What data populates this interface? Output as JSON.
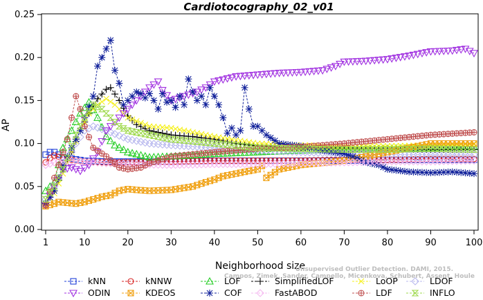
{
  "chart_data": {
    "type": "line",
    "title": "Cardiotocography_02_v01",
    "xlabel": "Neighborhood size",
    "ylabel": "AP",
    "xlim": [
      1,
      100
    ],
    "ylim": [
      0,
      0.25
    ],
    "xticks": [
      1,
      10,
      20,
      30,
      40,
      50,
      60,
      70,
      80,
      90,
      100
    ],
    "yticks": [
      0.0,
      0.05,
      0.1,
      0.15,
      0.2,
      0.25
    ],
    "ytick_labels": [
      "0.00",
      "0.05",
      "0.10",
      "0.15",
      "0.20",
      "0.25"
    ],
    "grid": false,
    "legend_position": "bottom",
    "credit_lines": [
      "Unsupervised Outlier Detection. DAMI, 2015.",
      "Campos, Zimek, Sander, Campello, Micenkova, Schubert, Assent, Houle"
    ],
    "series": [
      {
        "name": "kNN",
        "color": "#1f3fd8",
        "marker": "square",
        "x": [
          1,
          2,
          3,
          5,
          10,
          15,
          20,
          30,
          40,
          50,
          60,
          70,
          80,
          90,
          100
        ],
        "y": [
          0.087,
          0.09,
          0.09,
          0.084,
          0.08,
          0.079,
          0.079,
          0.079,
          0.08,
          0.08,
          0.08,
          0.08,
          0.081,
          0.081,
          0.081
        ]
      },
      {
        "name": "kNNW",
        "color": "#d62020",
        "marker": "circle",
        "x": [
          1,
          2,
          3,
          5,
          8,
          10,
          15,
          20,
          30,
          40,
          50,
          60,
          70,
          80,
          90,
          100
        ],
        "y": [
          0.078,
          0.083,
          0.086,
          0.083,
          0.08,
          0.079,
          0.078,
          0.078,
          0.079,
          0.08,
          0.08,
          0.08,
          0.081,
          0.081,
          0.082,
          0.082
        ]
      },
      {
        "name": "LOF",
        "color": "#22cc22",
        "marker": "triangle-up",
        "x": [
          1,
          3,
          5,
          7,
          9,
          11,
          13,
          15,
          17,
          20,
          25,
          30,
          40,
          50,
          60,
          70,
          80,
          90,
          100
        ],
        "y": [
          0.045,
          0.055,
          0.095,
          0.115,
          0.135,
          0.148,
          0.13,
          0.108,
          0.098,
          0.09,
          0.084,
          0.085,
          0.088,
          0.09,
          0.092,
          0.093,
          0.094,
          0.095,
          0.096
        ]
      },
      {
        "name": "SimplifiedLOF",
        "color": "#000000",
        "marker": "plus",
        "x": [
          1,
          3,
          5,
          7,
          9,
          11,
          13,
          15,
          16,
          18,
          20,
          22,
          25,
          30,
          35,
          40,
          45,
          50,
          60,
          70,
          80,
          90,
          100
        ],
        "y": [
          0.03,
          0.045,
          0.07,
          0.09,
          0.115,
          0.135,
          0.152,
          0.163,
          0.165,
          0.15,
          0.132,
          0.122,
          0.115,
          0.11,
          0.108,
          0.105,
          0.1,
          0.097,
          0.095,
          0.094,
          0.094,
          0.093,
          0.093
        ]
      },
      {
        "name": "LoOP",
        "color": "#f5f01a",
        "marker": "x",
        "x": [
          1,
          3,
          5,
          7,
          9,
          11,
          13,
          15,
          17,
          20,
          25,
          30,
          40,
          50,
          60,
          70,
          80,
          90,
          100
        ],
        "y": [
          0.03,
          0.042,
          0.065,
          0.09,
          0.115,
          0.135,
          0.145,
          0.152,
          0.145,
          0.13,
          0.12,
          0.118,
          0.108,
          0.1,
          0.098,
          0.097,
          0.097,
          0.098,
          0.099
        ]
      },
      {
        "name": "LDOF",
        "color": "#b8b8ee",
        "marker": "diamond",
        "x": [
          1,
          3,
          5,
          8,
          10,
          12,
          15,
          20,
          25,
          30,
          40,
          50,
          60,
          70,
          80,
          90,
          100
        ],
        "y": [
          0.035,
          0.05,
          0.07,
          0.1,
          0.115,
          0.12,
          0.115,
          0.105,
          0.1,
          0.098,
          0.095,
          0.092,
          0.09,
          0.088,
          0.087,
          0.087,
          0.087
        ]
      },
      {
        "name": "ODIN",
        "color": "#a030e0",
        "marker": "triangle-down",
        "x": [
          1,
          3,
          5,
          7,
          9,
          11,
          13,
          15,
          18,
          20,
          23,
          25,
          27,
          28,
          30,
          33,
          36,
          38,
          40,
          45,
          50,
          55,
          60,
          65,
          68,
          70,
          75,
          80,
          85,
          88,
          90,
          95,
          98,
          100
        ],
        "y": [
          0.028,
          0.05,
          0.07,
          0.072,
          0.068,
          0.075,
          0.09,
          0.115,
          0.13,
          0.14,
          0.155,
          0.165,
          0.172,
          0.162,
          0.15,
          0.155,
          0.16,
          0.165,
          0.172,
          0.178,
          0.18,
          0.182,
          0.183,
          0.185,
          0.19,
          0.195,
          0.196,
          0.198,
          0.202,
          0.205,
          0.207,
          0.208,
          0.21,
          0.205
        ]
      },
      {
        "name": "KDEOS",
        "color": "#f0a010",
        "marker": "square-x",
        "x": [
          1,
          3,
          4,
          6,
          8,
          10,
          12,
          14,
          16,
          18,
          20,
          22,
          25,
          30,
          35,
          38,
          40,
          42,
          45,
          48,
          50,
          51,
          52,
          55,
          60,
          70,
          80,
          90,
          100
        ],
        "y": [
          0.027,
          0.03,
          0.032,
          0.031,
          0.03,
          0.032,
          0.035,
          0.038,
          0.04,
          0.045,
          0.047,
          0.046,
          0.045,
          0.046,
          0.05,
          0.055,
          0.058,
          0.062,
          0.065,
          0.068,
          0.07,
          0.074,
          0.06,
          0.07,
          0.075,
          0.08,
          0.09,
          0.1,
          0.1
        ]
      },
      {
        "name": "COF",
        "color": "#10209a",
        "marker": "star",
        "x": [
          1,
          3,
          5,
          7,
          9,
          10,
          12,
          13,
          14,
          15,
          16,
          17,
          18,
          19,
          20,
          21,
          22,
          23,
          24,
          25,
          26,
          27,
          28,
          29,
          30,
          31,
          32,
          33,
          34,
          35,
          36,
          37,
          38,
          39,
          40,
          41,
          42,
          43,
          44,
          45,
          46,
          47,
          48,
          49,
          50,
          52,
          55,
          60,
          65,
          70,
          72,
          75,
          78,
          80,
          85,
          90,
          95,
          100
        ],
        "y": [
          0.03,
          0.045,
          0.075,
          0.095,
          0.115,
          0.13,
          0.155,
          0.19,
          0.2,
          0.21,
          0.22,
          0.185,
          0.17,
          0.145,
          0.15,
          0.155,
          0.16,
          0.158,
          0.153,
          0.158,
          0.15,
          0.14,
          0.158,
          0.148,
          0.15,
          0.142,
          0.155,
          0.145,
          0.175,
          0.16,
          0.15,
          0.155,
          0.145,
          0.165,
          0.155,
          0.145,
          0.13,
          0.112,
          0.118,
          0.11,
          0.115,
          0.165,
          0.14,
          0.12,
          0.12,
          0.11,
          0.1,
          0.097,
          0.092,
          0.088,
          0.085,
          0.078,
          0.075,
          0.07,
          0.067,
          0.066,
          0.067,
          0.065
        ]
      },
      {
        "name": "FastABOD",
        "color": "#f5b8f0",
        "marker": "diamond",
        "x": [
          1,
          3,
          5,
          8,
          10,
          15,
          20,
          30,
          40,
          50,
          60,
          70,
          80,
          90,
          100
        ],
        "y": [
          0.075,
          0.078,
          0.08,
          0.08,
          0.079,
          0.077,
          0.076,
          0.075,
          0.076,
          0.076,
          0.077,
          0.078,
          0.079,
          0.079,
          0.08
        ]
      },
      {
        "name": "LDF",
        "color": "#c05050",
        "marker": "circle-plus",
        "x": [
          1,
          3,
          4,
          5,
          6,
          7,
          8,
          9,
          10,
          12,
          15,
          18,
          20,
          23,
          25,
          30,
          40,
          50,
          60,
          70,
          80,
          90,
          100
        ],
        "y": [
          0.028,
          0.06,
          0.075,
          0.09,
          0.105,
          0.13,
          0.155,
          0.14,
          0.12,
          0.095,
          0.085,
          0.072,
          0.07,
          0.072,
          0.077,
          0.085,
          0.09,
          0.094,
          0.096,
          0.1,
          0.105,
          0.11,
          0.113
        ]
      },
      {
        "name": "INFLO",
        "color": "#9dd84a",
        "marker": "hourglass",
        "x": [
          1,
          3,
          5,
          8,
          10,
          12,
          14,
          16,
          18,
          20,
          25,
          30,
          40,
          50,
          60,
          70,
          80,
          90,
          100
        ],
        "y": [
          0.035,
          0.05,
          0.07,
          0.11,
          0.13,
          0.145,
          0.14,
          0.13,
          0.12,
          0.115,
          0.11,
          0.105,
          0.1,
          0.095,
          0.094,
          0.093,
          0.093,
          0.094,
          0.093
        ]
      }
    ]
  }
}
